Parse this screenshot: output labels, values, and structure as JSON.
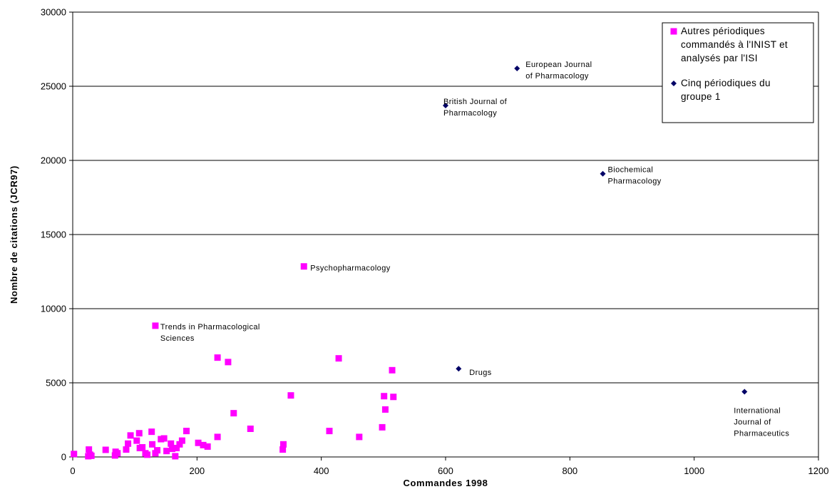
{
  "chart_data": {
    "type": "scatter",
    "title": "",
    "xlabel": "Commandes 1998",
    "ylabel": "Nombre de citations (JCR97)",
    "xlim": [
      0,
      1200
    ],
    "ylim": [
      0,
      30000
    ],
    "x_ticks": [
      "0",
      "200",
      "400",
      "600",
      "800",
      "1000",
      "1200"
    ],
    "y_ticks": [
      "0",
      "5000",
      "10000",
      "15000",
      "20000",
      "25000",
      "30000"
    ],
    "grid": "horizontal",
    "legend_position": "top-right",
    "series": [
      {
        "name": "Autres périodiques commandés à l'INIST et analysés par l'ISI",
        "marker": "square",
        "color": "#ff00ff",
        "points": [
          {
            "x": 2,
            "y": 200
          },
          {
            "x": 25,
            "y": 50
          },
          {
            "x": 26,
            "y": 500
          },
          {
            "x": 28,
            "y": 150
          },
          {
            "x": 30,
            "y": 80
          },
          {
            "x": 53,
            "y": 480
          },
          {
            "x": 68,
            "y": 100
          },
          {
            "x": 69,
            "y": 350
          },
          {
            "x": 72,
            "y": 250
          },
          {
            "x": 86,
            "y": 500
          },
          {
            "x": 89,
            "y": 900
          },
          {
            "x": 93,
            "y": 1450
          },
          {
            "x": 103,
            "y": 1100
          },
          {
            "x": 107,
            "y": 1600
          },
          {
            "x": 108,
            "y": 600
          },
          {
            "x": 112,
            "y": 650
          },
          {
            "x": 117,
            "y": 250
          },
          {
            "x": 120,
            "y": 150
          },
          {
            "x": 127,
            "y": 1700
          },
          {
            "x": 128,
            "y": 850
          },
          {
            "x": 133,
            "y": 250
          },
          {
            "x": 136,
            "y": 450
          },
          {
            "x": 142,
            "y": 1200
          },
          {
            "x": 147,
            "y": 1250
          },
          {
            "x": 151,
            "y": 400
          },
          {
            "x": 158,
            "y": 900
          },
          {
            "x": 160,
            "y": 550
          },
          {
            "x": 165,
            "y": 50
          },
          {
            "x": 167,
            "y": 600
          },
          {
            "x": 172,
            "y": 850
          },
          {
            "x": 176,
            "y": 1100
          },
          {
            "x": 183,
            "y": 1750
          },
          {
            "x": 202,
            "y": 950
          },
          {
            "x": 210,
            "y": 800
          },
          {
            "x": 217,
            "y": 700
          },
          {
            "x": 233,
            "y": 1350
          },
          {
            "x": 233,
            "y": 6700
          },
          {
            "x": 250,
            "y": 6400
          },
          {
            "x": 259,
            "y": 2950
          },
          {
            "x": 286,
            "y": 1900
          },
          {
            "x": 338,
            "y": 500
          },
          {
            "x": 339,
            "y": 850
          },
          {
            "x": 351,
            "y": 4150
          },
          {
            "x": 413,
            "y": 1750
          },
          {
            "x": 428,
            "y": 6650
          },
          {
            "x": 461,
            "y": 1350
          },
          {
            "x": 498,
            "y": 2000
          },
          {
            "x": 501,
            "y": 4100
          },
          {
            "x": 503,
            "y": 3200
          },
          {
            "x": 514,
            "y": 5850
          },
          {
            "x": 516,
            "y": 4050
          },
          {
            "x": 133,
            "y": 8850,
            "label": "Trends in Pharmacological Sciences"
          },
          {
            "x": 372,
            "y": 12850,
            "label": "Psychopharmacology"
          }
        ]
      },
      {
        "name": "Cinq périodiques du groupe 1",
        "marker": "diamond",
        "color": "#000066",
        "points": [
          {
            "x": 715,
            "y": 26200,
            "label": "European Journal of Pharmacology"
          },
          {
            "x": 600,
            "y": 23700,
            "label": "British Journal of Pharmacology"
          },
          {
            "x": 853,
            "y": 19100,
            "label": "Biochemical Pharmacology"
          },
          {
            "x": 621,
            "y": 5950,
            "label": "Drugs"
          },
          {
            "x": 1081,
            "y": 4400,
            "label": "International Journal of Pharmaceutics"
          }
        ]
      }
    ],
    "annotations": [
      {
        "target": "European Journal of Pharmacology",
        "lines": [
          "European Journal",
          "of Pharmacology"
        ]
      },
      {
        "target": "British Journal of Pharmacology",
        "lines": [
          "British Journal of",
          "Pharmacology"
        ]
      },
      {
        "target": "Biochemical Pharmacology",
        "lines": [
          "Biochemical",
          "Pharmacology"
        ]
      },
      {
        "target": "Psychopharmacology",
        "lines": [
          "Psychopharmacology"
        ]
      },
      {
        "target": "Trends in Pharmacological Sciences",
        "lines": [
          "Trends in Pharmacological",
          "Sciences"
        ]
      },
      {
        "target": "Drugs",
        "lines": [
          "Drugs"
        ]
      },
      {
        "target": "International Journal of Pharmaceutics",
        "lines": [
          "International",
          "Journal of",
          "Pharmaceutics"
        ]
      }
    ],
    "legend": [
      {
        "series": 0,
        "lines": [
          "Autres périodiques",
          "commandés à l'INIST et",
          "analysés par l'ISI"
        ]
      },
      {
        "series": 1,
        "lines": [
          "Cinq périodiques du",
          "groupe 1"
        ]
      }
    ]
  }
}
